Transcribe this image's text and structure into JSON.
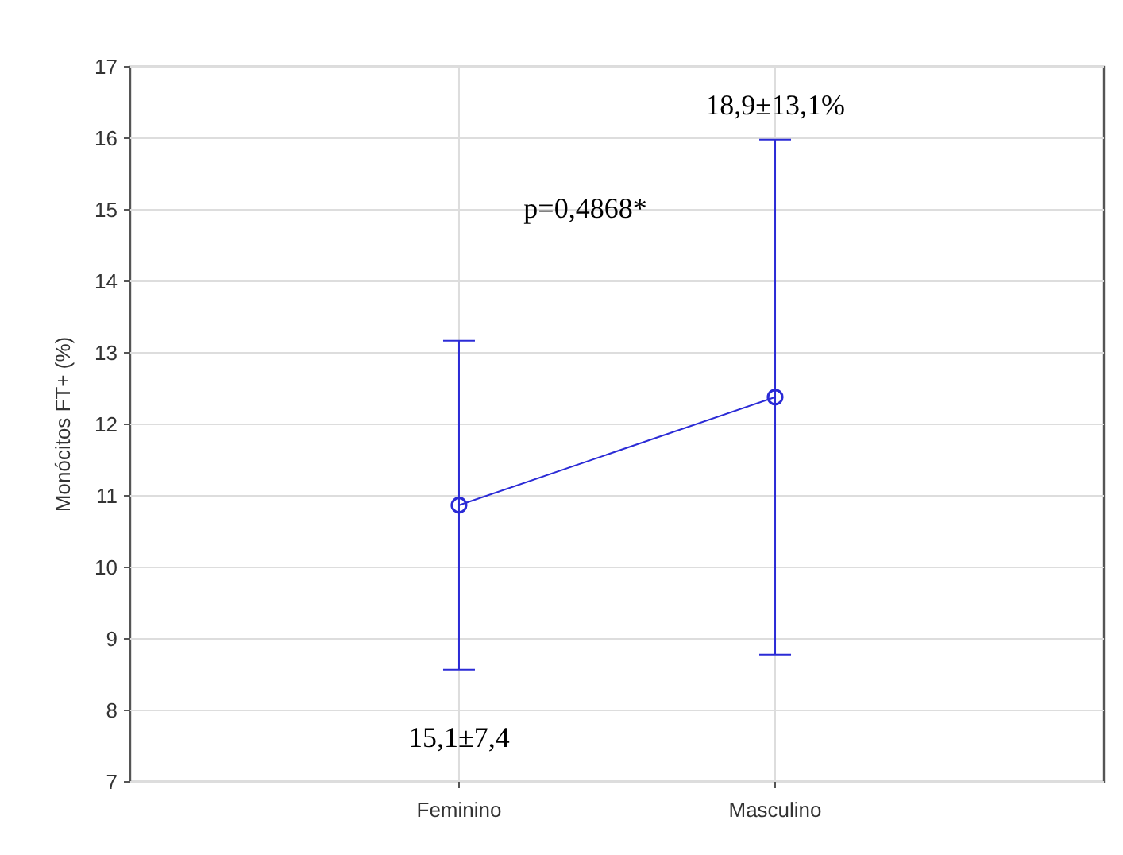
{
  "chart_data": {
    "type": "line",
    "ylabel": "Monócitos FT+ (%)",
    "categories": [
      "Feminino",
      "Masculino"
    ],
    "series": [
      {
        "color": "#2b2bd6",
        "values": [
          10.87,
          12.38
        ],
        "errors": [
          2.3,
          3.6
        ]
      }
    ],
    "ylim": [
      7,
      17
    ],
    "yticks": [
      7,
      8,
      9,
      10,
      11,
      12,
      13,
      14,
      15,
      16,
      17
    ],
    "grid": true,
    "marker": "circle",
    "line_style": "solid",
    "annotations": [
      "18,9±13,1%",
      "p=0,4868*",
      "15,1±7,4"
    ]
  }
}
